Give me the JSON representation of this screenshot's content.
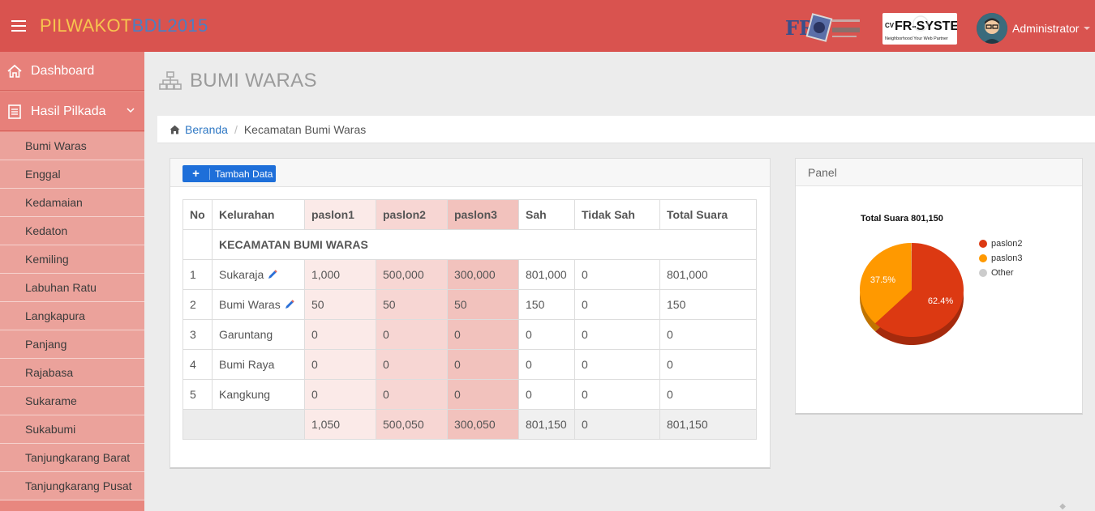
{
  "header": {
    "brand_part1": "PILWAKOT",
    "brand_part2": "BDL2015",
    "user_name": "Administrator",
    "logo1_text": "FR",
    "logo2_text": "FR-SYSTEM",
    "logo2_tagline": "Neighborhood Your Web Partner"
  },
  "sidebar": {
    "dashboard_label": "Dashboard",
    "hasil_label": "Hasil Pilkada",
    "items": [
      {
        "label": "Bumi Waras"
      },
      {
        "label": "Enggal"
      },
      {
        "label": "Kedamaian"
      },
      {
        "label": "Kedaton"
      },
      {
        "label": "Kemiling"
      },
      {
        "label": "Labuhan Ratu"
      },
      {
        "label": "Langkapura"
      },
      {
        "label": "Panjang"
      },
      {
        "label": "Rajabasa"
      },
      {
        "label": "Sukarame"
      },
      {
        "label": "Sukabumi"
      },
      {
        "label": "Tanjungkarang Barat"
      },
      {
        "label": "Tanjungkarang Pusat"
      }
    ]
  },
  "page": {
    "title": "BUMI WARAS",
    "breadcrumb_home": "Beranda",
    "breadcrumb_current": "Kecamatan Bumi Waras"
  },
  "main_panel": {
    "add_button_label": "Tambah Data",
    "columns": [
      "No",
      "Kelurahan",
      "paslon1",
      "paslon2",
      "paslon3",
      "Sah",
      "Tidak Sah",
      "Total Suara"
    ],
    "group_label": "KECAMATAN BUMI WARAS",
    "rows": [
      {
        "no": "1",
        "kelurahan": "Sukaraja",
        "p1": "1,000",
        "p2": "500,000",
        "p3": "300,000",
        "sah": "801,000",
        "tidak_sah": "0",
        "total": "801,000"
      },
      {
        "no": "2",
        "kelurahan": "Bumi Waras",
        "p1": "50",
        "p2": "50",
        "p3": "50",
        "sah": "150",
        "tidak_sah": "0",
        "total": "150"
      },
      {
        "no": "3",
        "kelurahan": "Garuntang",
        "p1": "0",
        "p2": "0",
        "p3": "0",
        "sah": "0",
        "tidak_sah": "0",
        "total": "0"
      },
      {
        "no": "4",
        "kelurahan": "Bumi Raya",
        "p1": "0",
        "p2": "0",
        "p3": "0",
        "sah": "0",
        "tidak_sah": "0",
        "total": "0"
      },
      {
        "no": "5",
        "kelurahan": "Kangkung",
        "p1": "0",
        "p2": "0",
        "p3": "0",
        "sah": "0",
        "tidak_sah": "0",
        "total": "0"
      }
    ],
    "totals": {
      "p1": "1,050",
      "p2": "500,050",
      "p3": "300,050",
      "sah": "801,150",
      "tidak_sah": "0",
      "total": "801,150"
    }
  },
  "side_panel": {
    "title": "Panel"
  },
  "chart_data": {
    "type": "pie",
    "title": "Total Suara 801,150",
    "legend_position": "right",
    "slices": [
      {
        "name": "paslon2",
        "value": 62.4,
        "label": "62.4%",
        "color": "#dc3912"
      },
      {
        "name": "paslon3",
        "value": 37.5,
        "label": "37.5%",
        "color": "#ff9900"
      },
      {
        "name": "Other",
        "value": 0.1,
        "color": "#cccccc"
      }
    ]
  }
}
